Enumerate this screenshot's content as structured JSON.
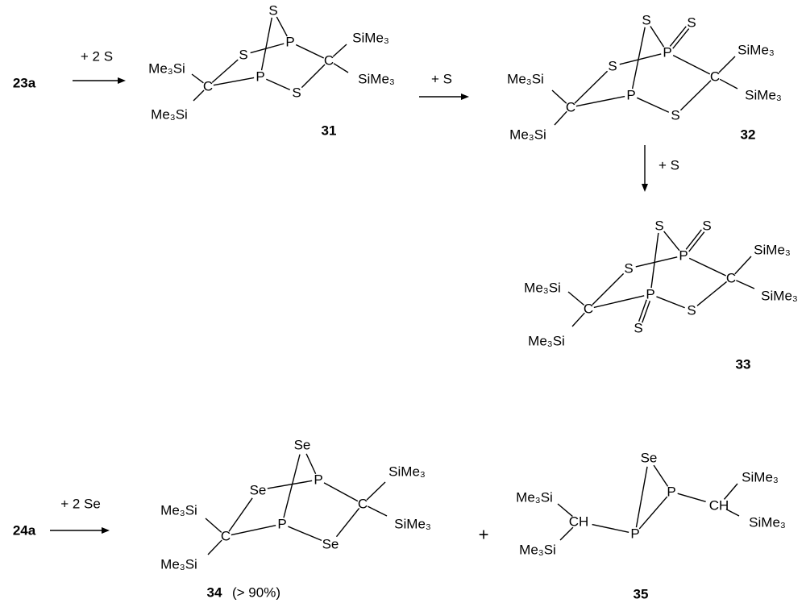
{
  "reactants": {
    "r1": "23a",
    "r2": "24a"
  },
  "reagents": {
    "step1": "+ 2 S",
    "step2": "+ S",
    "step3": "+ S",
    "step4": "+ 2 Se"
  },
  "compounds": {
    "c31": {
      "label": "31",
      "S_top": "S",
      "P_up": "P",
      "S_left": "S",
      "P_low": "P",
      "S_bot": "S",
      "C_left": "C",
      "C_right": "C",
      "sub_tl": "Me₃Si",
      "sub_bl": "Me₃Si",
      "sub_tr": "SiMe₃",
      "sub_br": "SiMe₃"
    },
    "c32": {
      "label": "32",
      "S_top": "S",
      "S_exo": "S",
      "P_up": "P",
      "S_left": "S",
      "P_low": "P",
      "S_bot": "S",
      "C_left": "C",
      "C_right": "C",
      "sub_tl": "Me₃Si",
      "sub_bl": "Me₃Si",
      "sub_tr": "SiMe₃",
      "sub_br": "SiMe₃"
    },
    "c33": {
      "label": "33",
      "S_top": "S",
      "S_exo": "S",
      "P_up": "P",
      "S_left": "S",
      "P_low": "P",
      "S_exo2": "S",
      "S_bot": "S",
      "C_left": "C",
      "C_right": "C",
      "sub_tl": "Me₃Si",
      "sub_bl": "Me₃Si",
      "sub_tr": "SiMe₃",
      "sub_br": "SiMe₃"
    },
    "c34": {
      "label": "34",
      "yield": "(> 90%)",
      "Se_top": "Se",
      "P_up": "P",
      "Se_left": "Se",
      "P_low": "P",
      "Se_bot": "Se",
      "C_left": "C",
      "C_right": "C",
      "sub_tl": "Me₃Si",
      "sub_bl": "Me₃Si",
      "sub_tr": "SiMe₃",
      "sub_br": "SiMe₃"
    },
    "c35": {
      "label": "35",
      "Se": "Se",
      "P_right": "P",
      "P_low": "P",
      "CH_left": "CH",
      "CH_right": "CH",
      "sub_tl": "Me₃Si",
      "sub_bl": "Me₃Si",
      "sub_tr": "SiMe₃",
      "sub_br": "SiMe₃"
    }
  },
  "plus": "+"
}
